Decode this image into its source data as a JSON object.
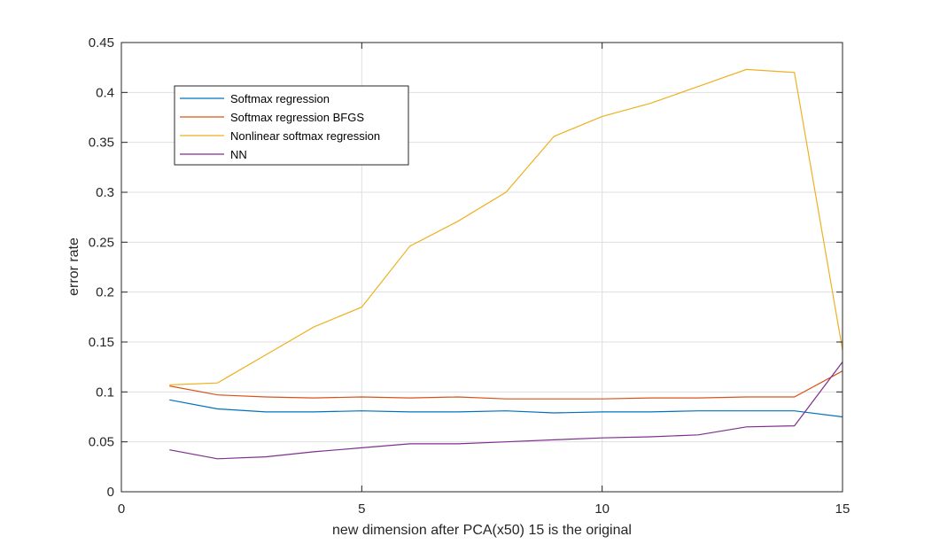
{
  "chart_data": {
    "type": "line",
    "xlabel": "new dimension after PCA(x50) 15 is the original",
    "ylabel": "error rate",
    "xlim": [
      0,
      15
    ],
    "ylim": [
      0,
      0.45
    ],
    "xticks": [
      0,
      5,
      10,
      15
    ],
    "yticks": [
      0,
      0.05,
      0.1,
      0.15,
      0.2,
      0.25,
      0.3,
      0.35,
      0.4,
      0.45
    ],
    "xtick_labels": [
      "0",
      "5",
      "10",
      "15"
    ],
    "ytick_labels": [
      "0",
      "0.05",
      "0.1",
      "0.15",
      "0.2",
      "0.25",
      "0.3",
      "0.35",
      "0.4",
      "0.45"
    ],
    "grid": true,
    "legend_position": "top-left",
    "x": [
      1,
      2,
      3,
      4,
      5,
      6,
      7,
      8,
      9,
      10,
      11,
      12,
      13,
      14,
      15
    ],
    "series": [
      {
        "name": "Softmax regression",
        "color": "#0072BD",
        "values": [
          0.092,
          0.083,
          0.08,
          0.08,
          0.081,
          0.08,
          0.08,
          0.081,
          0.079,
          0.08,
          0.08,
          0.081,
          0.081,
          0.081,
          0.075
        ]
      },
      {
        "name": "Softmax regression BFGS",
        "color": "#D95319",
        "values": [
          0.106,
          0.097,
          0.095,
          0.094,
          0.095,
          0.094,
          0.095,
          0.093,
          0.093,
          0.093,
          0.094,
          0.094,
          0.095,
          0.095,
          0.121
        ]
      },
      {
        "name": "Nonlinear softmax regression",
        "color": "#EDB120",
        "values": [
          0.107,
          0.109,
          0.137,
          0.165,
          0.185,
          0.246,
          0.271,
          0.3,
          0.356,
          0.376,
          0.389,
          0.406,
          0.423,
          0.42,
          0.142
        ]
      },
      {
        "name": "NN",
        "color": "#7E2F8E",
        "values": [
          0.042,
          0.033,
          0.035,
          0.04,
          0.044,
          0.048,
          0.048,
          0.05,
          0.052,
          0.054,
          0.055,
          0.057,
          0.065,
          0.066,
          0.13
        ]
      }
    ]
  }
}
